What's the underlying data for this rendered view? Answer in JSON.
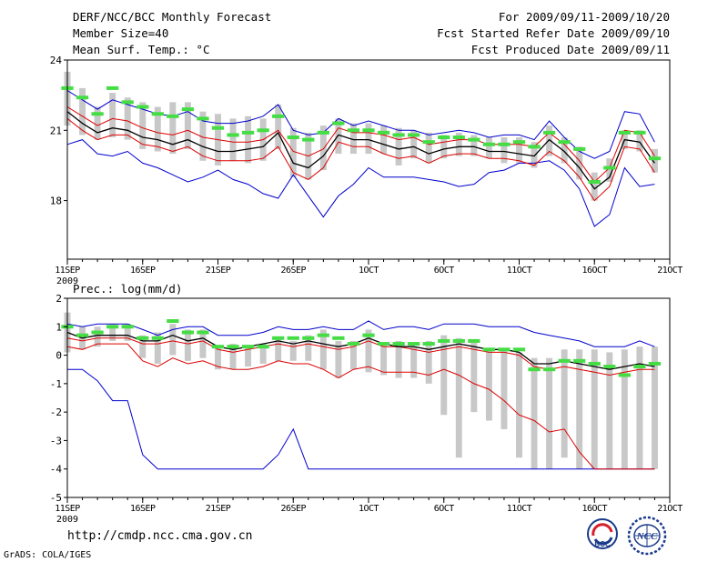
{
  "header": {
    "title": "DERF/NCC/BCC Monthly Forecast",
    "member_size": "Member Size=40",
    "period": "For 2009/09/11-2009/10/20",
    "started": "Fcst Started Refer Date 2009/09/10",
    "produced": "Fcst Produced Date 2009/09/11"
  },
  "footer": {
    "url": "http://cmdp.ncc.cma.gov.cn",
    "grads": "GrADS: COLA/IGES",
    "logo_bcc": "BCC",
    "logo_ncc": "NCC"
  },
  "colors": {
    "box": "#c8c8c8",
    "median": "#44dd44",
    "mean": "#000000",
    "spread": "#dd0000",
    "extreme": "#0000cc"
  },
  "chart_data": [
    {
      "type": "line",
      "title": "Mean Surf. Temp.: °C",
      "xlim": [
        1,
        41
      ],
      "ylim": [
        15.5,
        24
      ],
      "yticks": [
        24,
        21,
        18
      ],
      "ytick_labels": [
        "24",
        "21",
        "18"
      ],
      "xticks": [
        1,
        6,
        11,
        16,
        21,
        26,
        31,
        36,
        41
      ],
      "xtick_labels": [
        "11SEP",
        "16SEP",
        "21SEP",
        "26SEP",
        "1OCT",
        "6OCT",
        "11OCT",
        "16OCT",
        "21OCT"
      ],
      "xsub_label": "2009",
      "x": [
        1,
        2,
        3,
        4,
        5,
        6,
        7,
        8,
        9,
        10,
        11,
        12,
        13,
        14,
        15,
        16,
        17,
        18,
        19,
        20,
        21,
        22,
        23,
        24,
        25,
        26,
        27,
        28,
        29,
        30,
        31,
        32,
        33,
        34,
        35,
        36,
        37,
        38,
        39,
        40
      ],
      "series": [
        {
          "name": "max",
          "style": "extreme",
          "values": [
            22.7,
            22.3,
            21.9,
            22.3,
            22.1,
            21.9,
            21.7,
            21.6,
            21.8,
            21.4,
            21.3,
            21.3,
            21.4,
            21.6,
            22.1,
            21.0,
            20.8,
            20.9,
            21.5,
            21.2,
            21.4,
            21.2,
            21.0,
            21.0,
            20.8,
            20.9,
            21.0,
            20.9,
            20.7,
            20.8,
            20.8,
            20.6,
            21.4,
            20.7,
            20.1,
            19.8,
            20.1,
            21.8,
            21.7,
            20.5
          ]
        },
        {
          "name": "upper",
          "style": "spread",
          "values": [
            22.0,
            21.6,
            21.2,
            21.5,
            21.4,
            21.1,
            20.9,
            20.8,
            21.0,
            20.7,
            20.6,
            20.5,
            20.5,
            20.6,
            21.0,
            20.1,
            19.9,
            20.2,
            21.1,
            20.9,
            20.9,
            20.8,
            20.6,
            20.7,
            20.4,
            20.5,
            20.6,
            20.6,
            20.4,
            20.4,
            20.4,
            20.3,
            20.9,
            20.4,
            19.7,
            18.8,
            19.4,
            21.0,
            20.9,
            19.9
          ]
        },
        {
          "name": "mean",
          "style": "mean",
          "values": [
            21.8,
            21.3,
            20.9,
            21.1,
            21.0,
            20.7,
            20.6,
            20.4,
            20.6,
            20.3,
            20.1,
            20.1,
            20.2,
            20.3,
            20.9,
            19.6,
            19.4,
            19.9,
            20.8,
            20.6,
            20.6,
            20.4,
            20.2,
            20.3,
            20.0,
            20.2,
            20.3,
            20.3,
            20.1,
            20.1,
            20.0,
            19.9,
            20.6,
            20.1,
            19.4,
            18.5,
            19.0,
            20.6,
            20.5,
            19.6
          ]
        },
        {
          "name": "lower",
          "style": "spread",
          "values": [
            21.5,
            21.0,
            20.6,
            20.8,
            20.8,
            20.4,
            20.3,
            20.1,
            20.3,
            19.9,
            19.7,
            19.7,
            19.7,
            19.8,
            20.3,
            19.2,
            18.9,
            19.4,
            20.5,
            20.3,
            20.3,
            20.0,
            19.8,
            19.9,
            19.6,
            19.9,
            20.0,
            20.0,
            19.8,
            19.8,
            19.7,
            19.5,
            20.1,
            19.7,
            19.0,
            18.0,
            18.6,
            20.3,
            20.2,
            19.2
          ]
        },
        {
          "name": "min",
          "style": "extreme",
          "values": [
            20.4,
            20.6,
            20.0,
            19.9,
            20.1,
            19.6,
            19.4,
            19.1,
            18.8,
            19.0,
            19.3,
            18.9,
            18.7,
            18.3,
            18.1,
            19.1,
            18.2,
            17.3,
            18.2,
            18.7,
            19.4,
            19.0,
            19.0,
            19.0,
            18.9,
            18.8,
            18.6,
            18.7,
            19.2,
            19.3,
            19.6,
            19.6,
            19.7,
            19.3,
            18.5,
            16.9,
            17.4,
            19.4,
            18.6,
            18.7
          ]
        },
        {
          "name": "median",
          "style": "median",
          "values": [
            22.8,
            22.4,
            21.7,
            22.8,
            22.2,
            22.0,
            21.7,
            21.6,
            21.9,
            21.5,
            21.1,
            20.8,
            20.9,
            21.0,
            21.6,
            20.7,
            20.6,
            20.9,
            21.3,
            21.0,
            21.0,
            20.9,
            20.8,
            20.8,
            20.5,
            20.7,
            20.7,
            20.6,
            20.4,
            20.4,
            20.5,
            20.3,
            20.9,
            20.5,
            20.2,
            18.8,
            19.4,
            20.9,
            20.9,
            19.8
          ]
        },
        {
          "name": "box_high",
          "style": "box",
          "values": [
            23.5,
            22.8,
            22.0,
            22.6,
            22.4,
            22.2,
            22.0,
            22.2,
            22.2,
            21.8,
            21.7,
            21.5,
            21.6,
            21.5,
            22.1,
            21.1,
            20.9,
            21.2,
            21.5,
            21.3,
            21.3,
            21.2,
            21.1,
            21.0,
            20.9,
            20.8,
            20.9,
            20.8,
            20.7,
            20.7,
            20.7,
            20.5,
            21.2,
            20.7,
            20.3,
            19.2,
            19.8,
            21.0,
            21.0,
            20.2
          ]
        },
        {
          "name": "box_low",
          "style": "box",
          "values": [
            21.2,
            20.8,
            20.6,
            20.7,
            20.6,
            20.2,
            20.1,
            20.0,
            20.2,
            19.7,
            19.5,
            19.7,
            19.6,
            19.7,
            20.2,
            19.0,
            18.9,
            19.3,
            20.0,
            20.0,
            20.0,
            20.0,
            19.5,
            19.8,
            19.6,
            19.8,
            19.9,
            19.9,
            19.8,
            19.6,
            19.6,
            19.4,
            19.9,
            19.6,
            18.9,
            18.0,
            18.8,
            20.2,
            20.1,
            19.2
          ]
        }
      ]
    },
    {
      "type": "line",
      "title": "Prec.: log(mm/d)",
      "xlim": [
        1,
        41
      ],
      "ylim": [
        -5,
        2
      ],
      "yticks": [
        2,
        1,
        0,
        -1,
        -2,
        -3,
        -4,
        -5
      ],
      "ytick_labels": [
        "2",
        "1",
        "0",
        "-1",
        "-2",
        "-3",
        "-4",
        "-5"
      ],
      "xticks": [
        1,
        6,
        11,
        16,
        21,
        26,
        31,
        36,
        41
      ],
      "xtick_labels": [
        "11SEP",
        "16SEP",
        "21SEP",
        "26SEP",
        "1OCT",
        "6OCT",
        "11OCT",
        "16OCT",
        "21OCT"
      ],
      "xsub_label": "2009",
      "x": [
        1,
        2,
        3,
        4,
        5,
        6,
        7,
        8,
        9,
        10,
        11,
        12,
        13,
        14,
        15,
        16,
        17,
        18,
        19,
        20,
        21,
        22,
        23,
        24,
        25,
        26,
        27,
        28,
        29,
        30,
        31,
        32,
        33,
        34,
        35,
        36,
        37,
        38,
        39,
        40
      ],
      "series": [
        {
          "name": "max",
          "style": "extreme",
          "values": [
            1.1,
            1.0,
            1.1,
            1.1,
            1.1,
            0.9,
            0.7,
            0.9,
            1.0,
            1.0,
            0.7,
            0.7,
            0.7,
            0.8,
            1.0,
            0.9,
            0.9,
            1.0,
            0.9,
            0.9,
            1.2,
            0.9,
            1.0,
            1.0,
            0.9,
            1.1,
            1.1,
            1.1,
            1.0,
            1.0,
            1.0,
            0.8,
            0.7,
            0.6,
            0.5,
            0.3,
            0.3,
            0.3,
            0.5,
            0.3
          ]
        },
        {
          "name": "mean",
          "style": "mean",
          "values": [
            0.8,
            0.6,
            0.7,
            0.7,
            0.7,
            0.5,
            0.5,
            0.7,
            0.5,
            0.6,
            0.3,
            0.2,
            0.3,
            0.4,
            0.5,
            0.4,
            0.5,
            0.4,
            0.3,
            0.4,
            0.6,
            0.4,
            0.3,
            0.3,
            0.2,
            0.3,
            0.4,
            0.3,
            0.2,
            0.2,
            0.1,
            -0.3,
            -0.3,
            -0.2,
            -0.3,
            -0.4,
            -0.5,
            -0.4,
            -0.3,
            -0.4
          ]
        },
        {
          "name": "upper",
          "style": "spread",
          "values": [
            0.6,
            0.5,
            0.6,
            0.6,
            0.6,
            0.4,
            0.4,
            0.5,
            0.4,
            0.5,
            0.2,
            0.1,
            0.2,
            0.3,
            0.4,
            0.3,
            0.4,
            0.3,
            0.2,
            0.3,
            0.5,
            0.3,
            0.3,
            0.2,
            0.1,
            0.2,
            0.3,
            0.2,
            0.1,
            0.1,
            0.0,
            -0.4,
            -0.5,
            -0.4,
            -0.5,
            -0.6,
            -0.7,
            -0.6,
            -0.5,
            -0.5
          ]
        },
        {
          "name": "lower",
          "style": "spread",
          "values": [
            0.3,
            0.2,
            0.4,
            0.4,
            0.4,
            -0.2,
            -0.4,
            -0.1,
            -0.3,
            -0.2,
            -0.4,
            -0.5,
            -0.5,
            -0.4,
            -0.2,
            -0.3,
            -0.3,
            -0.5,
            -0.8,
            -0.5,
            -0.4,
            -0.6,
            -0.6,
            -0.6,
            -0.7,
            -0.5,
            -0.7,
            -1.0,
            -1.2,
            -1.6,
            -2.1,
            -2.3,
            -2.7,
            -2.6,
            -3.4,
            -4.0,
            -4.0,
            -4.0,
            -4.0,
            -4.0
          ]
        },
        {
          "name": "min",
          "style": "extreme",
          "values": [
            -0.5,
            -0.5,
            -0.9,
            -1.6,
            -1.6,
            -3.5,
            -4.0,
            -4.0,
            -4.0,
            -4.0,
            -4.0,
            -4.0,
            -4.0,
            -4.0,
            -3.5,
            -2.6,
            -4.0,
            -4.0,
            -4.0,
            -4.0,
            -4.0,
            -4.0,
            -4.0,
            -4.0,
            -4.0,
            -4.0,
            -4.0,
            -4.0,
            -4.0,
            -4.0,
            -4.0,
            -4.0,
            -4.0,
            -4.0,
            -4.0,
            -4.0,
            -4.0,
            -4.0,
            -4.0,
            -4.0
          ]
        },
        {
          "name": "median",
          "style": "median",
          "values": [
            1.0,
            0.7,
            0.8,
            1.0,
            1.0,
            0.6,
            0.6,
            1.2,
            0.8,
            0.8,
            0.3,
            0.3,
            0.3,
            0.3,
            0.6,
            0.6,
            0.6,
            0.7,
            0.6,
            0.4,
            0.7,
            0.4,
            0.4,
            0.4,
            0.4,
            0.5,
            0.5,
            0.5,
            0.2,
            0.2,
            0.2,
            -0.5,
            -0.5,
            -0.2,
            -0.2,
            -0.3,
            -0.4,
            -0.7,
            -0.4,
            -0.3
          ]
        },
        {
          "name": "box_high",
          "style": "box",
          "values": [
            1.5,
            1.0,
            1.0,
            1.1,
            1.1,
            0.7,
            0.8,
            1.1,
            0.9,
            0.9,
            0.3,
            0.4,
            0.3,
            0.4,
            0.6,
            0.5,
            0.7,
            0.9,
            0.5,
            0.5,
            0.9,
            0.4,
            0.5,
            0.3,
            0.5,
            0.7,
            0.6,
            0.5,
            0.2,
            0.2,
            0.1,
            -0.1,
            -0.1,
            0.2,
            0.2,
            0.2,
            0.1,
            0.2,
            0.3,
            0.3
          ]
        },
        {
          "name": "box_low",
          "style": "box",
          "values": [
            0.1,
            0.2,
            0.3,
            0.5,
            0.5,
            -0.1,
            -0.3,
            0.0,
            -0.2,
            -0.1,
            -0.5,
            -0.5,
            -0.4,
            -0.3,
            -0.2,
            -0.2,
            -0.2,
            -0.5,
            -0.8,
            -0.5,
            -0.6,
            -0.7,
            -0.8,
            -0.8,
            -1.0,
            -2.1,
            -3.6,
            -2.0,
            -2.3,
            -2.6,
            -3.6,
            -4.0,
            -4.0,
            -3.6,
            -4.0,
            -4.0,
            -4.0,
            -4.0,
            -4.0,
            -4.0
          ]
        }
      ]
    }
  ]
}
